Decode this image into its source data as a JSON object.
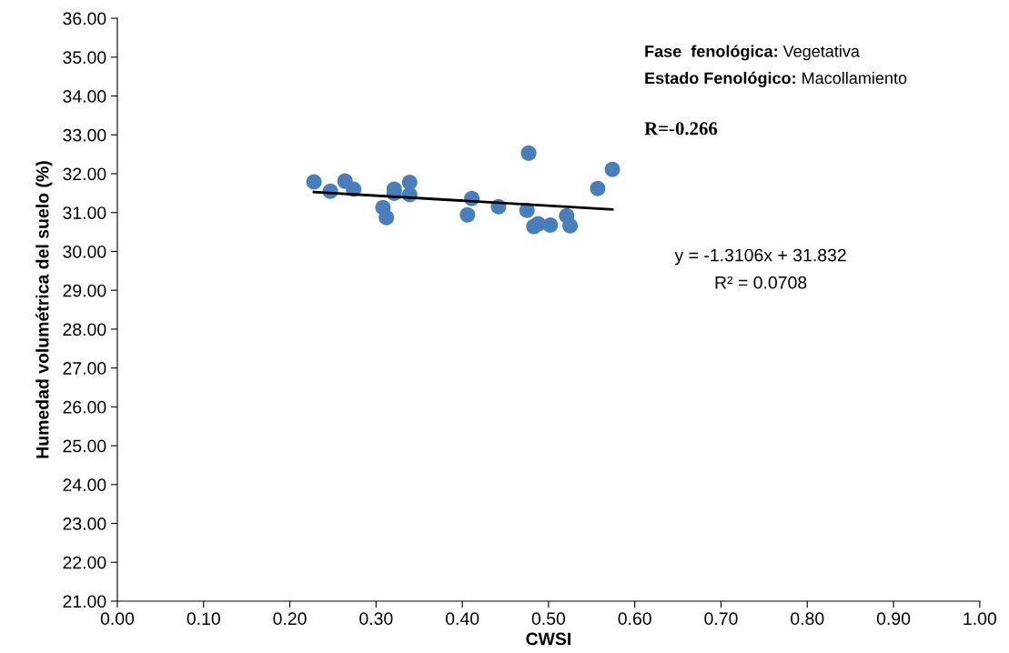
{
  "chart_data": {
    "type": "scatter",
    "xlabel": "CWSI",
    "ylabel": "Humedad volumétrica del suelo (%)",
    "xlim": [
      0,
      1
    ],
    "ylim": [
      21,
      36
    ],
    "xticks": [
      {
        "value": 0,
        "label": "0.00"
      },
      {
        "value": 0.1,
        "label": "0.10"
      },
      {
        "value": 0.2,
        "label": "0.20"
      },
      {
        "value": 0.3,
        "label": "0.30"
      },
      {
        "value": 0.4,
        "label": "0.40"
      },
      {
        "value": 0.5,
        "label": "0.50"
      },
      {
        "value": 0.6,
        "label": "0.60"
      },
      {
        "value": 0.7,
        "label": "0.70"
      },
      {
        "value": 0.8,
        "label": "0.80"
      },
      {
        "value": 0.9,
        "label": "0.90"
      },
      {
        "value": 1,
        "label": "1.00"
      }
    ],
    "yticks": [
      {
        "value": 21,
        "label": "21.00"
      },
      {
        "value": 22,
        "label": "22.00"
      },
      {
        "value": 23,
        "label": "23.00"
      },
      {
        "value": 24,
        "label": "24.00"
      },
      {
        "value": 25,
        "label": "25.00"
      },
      {
        "value": 26,
        "label": "26.00"
      },
      {
        "value": 27,
        "label": "27.00"
      },
      {
        "value": 28,
        "label": "28.00"
      },
      {
        "value": 29,
        "label": "29.00"
      },
      {
        "value": 30,
        "label": "30.00"
      },
      {
        "value": 31,
        "label": "31.00"
      },
      {
        "value": 32,
        "label": "32.00"
      },
      {
        "value": 33,
        "label": "33.00"
      },
      {
        "value": 34,
        "label": "34.00"
      },
      {
        "value": 35,
        "label": "35.00"
      },
      {
        "value": 36,
        "label": "36.00"
      }
    ],
    "grid": false,
    "series": [
      {
        "marker": "circle",
        "color": "#4a7ebb",
        "x": [
          0.228,
          0.247,
          0.264,
          0.274,
          0.308,
          0.312,
          0.321,
          0.321,
          0.339,
          0.339,
          0.406,
          0.411,
          0.442,
          0.475,
          0.477,
          0.483,
          0.488,
          0.502,
          0.521,
          0.525,
          0.557,
          0.574
        ],
        "values": [
          31.79,
          31.55,
          31.81,
          31.6,
          31.13,
          30.87,
          31.6,
          31.5,
          31.78,
          31.46,
          30.94,
          31.36,
          31.15,
          31.06,
          32.53,
          30.64,
          30.71,
          30.68,
          30.92,
          30.66,
          31.62,
          32.11
        ]
      },
      {
        "type": "line",
        "marker": "none",
        "color": "#000000",
        "x": [
          0.228,
          0.574
        ],
        "values": [
          31.53,
          31.08
        ]
      }
    ],
    "annotations": [
      "Fase  fenológica: Vegetativa",
      "Estado Fenológico: Macollamiento",
      "R=-0.266",
      "y = -1.3106x + 31.832",
      "R² = 0.0708"
    ]
  }
}
